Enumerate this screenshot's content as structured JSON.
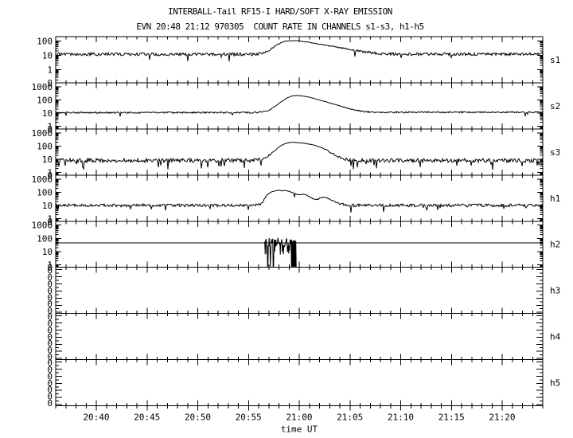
{
  "window": {
    "background": "#ffffff",
    "foreground": "#000000"
  },
  "chart_data": {
    "type": "line",
    "title": "INTERBALL-Tail RF15-I HARD/SOFT X-RAY EMISSION",
    "subtitle": "EVN 20:48 21:12 970305  COUNT RATE IN CHANNELS s1-s3, h1-h5",
    "xlabel": "time UT",
    "grid": false,
    "legend": false,
    "trace_color": "#000000",
    "axis_color": "#000000",
    "x_axis": {
      "units": "minutes after 20:00 UT",
      "start": 36,
      "end": 84,
      "minor_tick_every_min": 1,
      "major_ticks": [
        {
          "t": 40,
          "label": "20:40"
        },
        {
          "t": 45,
          "label": "20:45"
        },
        {
          "t": 50,
          "label": "20:50"
        },
        {
          "t": 55,
          "label": "20:55"
        },
        {
          "t": 60,
          "label": "21:00"
        },
        {
          "t": 65,
          "label": "21:05"
        },
        {
          "t": 70,
          "label": "21:10"
        },
        {
          "t": 75,
          "label": "21:15"
        },
        {
          "t": 80,
          "label": "21:20"
        }
      ]
    },
    "panels": [
      {
        "name": "s1",
        "side_label": "s1",
        "scale": "log",
        "ylog_top": 2.3,
        "ylog_bottom": -0.9,
        "yticks": [
          {
            "label": "100",
            "value": 100
          },
          {
            "label": "10",
            "value": 10
          },
          {
            "label": "1",
            "value": 1
          }
        ],
        "zero_label": "0",
        "series": {
          "seed": 11,
          "noise_dex": 0.1,
          "spike_p": 0.015,
          "spike_dex": 0.3,
          "keypoints": [
            [
              36,
              12
            ],
            [
              50,
              12
            ],
            [
              54,
              12
            ],
            [
              55.5,
              12
            ],
            [
              56,
              13
            ],
            [
              56.5,
              16
            ],
            [
              57,
              22
            ],
            [
              57.5,
              38
            ],
            [
              58,
              65
            ],
            [
              58.5,
              92
            ],
            [
              59,
              103
            ],
            [
              59.7,
              104
            ],
            [
              60.3,
              95
            ],
            [
              61,
              80
            ],
            [
              61.7,
              65
            ],
            [
              62.3,
              55
            ],
            [
              63,
              46
            ],
            [
              63.7,
              38
            ],
            [
              64.3,
              32
            ],
            [
              65,
              26
            ],
            [
              65.7,
              21
            ],
            [
              66.3,
              18
            ],
            [
              67,
              15.5
            ],
            [
              68,
              13.5
            ],
            [
              69,
              12.5
            ],
            [
              70,
              12
            ],
            [
              84,
              12.5
            ]
          ]
        }
      },
      {
        "name": "s2",
        "side_label": "s2",
        "scale": "log",
        "ylog_top": 3.3,
        "ylog_bottom": -0.2,
        "yticks": [
          {
            "label": "1000",
            "value": 1000
          },
          {
            "label": "100",
            "value": 100
          },
          {
            "label": "10",
            "value": 10
          },
          {
            "label": "1",
            "value": 1
          }
        ],
        "zero_label": "0",
        "series": {
          "seed": 22,
          "noise_dex": 0.055,
          "spike_p": 0.008,
          "spike_dex": 0.2,
          "keypoints": [
            [
              36,
              11
            ],
            [
              54,
              11
            ],
            [
              55.5,
              11
            ],
            [
              56.3,
              12
            ],
            [
              57,
              16
            ],
            [
              57.6,
              32
            ],
            [
              58.2,
              70
            ],
            [
              58.8,
              140
            ],
            [
              59.3,
              200
            ],
            [
              59.8,
              220
            ],
            [
              60.3,
              200
            ],
            [
              61,
              160
            ],
            [
              61.7,
              115
            ],
            [
              62.3,
              85
            ],
            [
              63,
              60
            ],
            [
              63.7,
              42
            ],
            [
              64.3,
              30
            ],
            [
              65,
              21
            ],
            [
              65.7,
              16
            ],
            [
              66.3,
              13.5
            ],
            [
              67,
              12
            ],
            [
              68,
              11.5
            ],
            [
              84,
              11.5
            ]
          ]
        }
      },
      {
        "name": "s3",
        "side_label": "s3",
        "scale": "log",
        "ylog_top": 3.3,
        "ylog_bottom": -0.2,
        "yticks": [
          {
            "label": "1000",
            "value": 1000
          },
          {
            "label": "100",
            "value": 100
          },
          {
            "label": "10",
            "value": 10
          },
          {
            "label": "1",
            "value": 1
          }
        ],
        "zero_label": "0",
        "series": {
          "seed": 33,
          "noise_dex": 0.15,
          "spike_p": 0.05,
          "spike_dex": 0.45,
          "keypoints": [
            [
              36,
              8
            ],
            [
              55,
              8
            ],
            [
              56,
              9
            ],
            [
              56.8,
              14
            ],
            [
              57.5,
              40
            ],
            [
              58.2,
              110
            ],
            [
              58.8,
              170
            ],
            [
              59.3,
              195
            ],
            [
              59.8,
              185
            ],
            [
              60.4,
              165
            ],
            [
              61,
              140
            ],
            [
              61.6,
              110
            ],
            [
              62.2,
              75
            ],
            [
              62.8,
              45
            ],
            [
              63.4,
              24
            ],
            [
              64,
              14
            ],
            [
              64.6,
              10
            ],
            [
              65.3,
              8.5
            ],
            [
              66,
              8
            ],
            [
              84,
              8
            ]
          ]
        }
      },
      {
        "name": "h1",
        "side_label": "h1",
        "scale": "log",
        "ylog_top": 3.3,
        "ylog_bottom": -0.2,
        "yticks": [
          {
            "label": "1000",
            "value": 1000
          },
          {
            "label": "100",
            "value": 100
          },
          {
            "label": "10",
            "value": 10
          },
          {
            "label": "1",
            "value": 1
          }
        ],
        "zero_label": "0",
        "series": {
          "seed": 44,
          "noise_dex": 0.11,
          "spike_p": 0.02,
          "spike_dex": 0.3,
          "down_spikes": [
            [
              65.1,
              0.55
            ],
            [
              68.3,
              0.5
            ]
          ],
          "keypoints": [
            [
              36,
              10
            ],
            [
              55,
              10
            ],
            [
              56.2,
              11
            ],
            [
              56.5,
              25
            ],
            [
              56.8,
              60
            ],
            [
              57.2,
              100
            ],
            [
              57.6,
              125
            ],
            [
              58,
              140
            ],
            [
              58.3,
              125
            ],
            [
              58.6,
              140
            ],
            [
              59,
              115
            ],
            [
              59.4,
              88
            ],
            [
              59.8,
              68
            ],
            [
              60.1,
              62
            ],
            [
              60.4,
              75
            ],
            [
              60.7,
              62
            ],
            [
              61,
              45
            ],
            [
              61.4,
              32
            ],
            [
              61.8,
              28
            ],
            [
              62.1,
              38
            ],
            [
              62.4,
              44
            ],
            [
              62.8,
              36
            ],
            [
              63.2,
              25
            ],
            [
              63.6,
              17
            ],
            [
              64,
              13
            ],
            [
              64.5,
              11
            ],
            [
              65,
              10
            ],
            [
              84,
              10
            ]
          ]
        }
      },
      {
        "name": "h2",
        "side_label": "h2",
        "scale": "log",
        "ylog_top": 3.3,
        "ylog_bottom": -0.2,
        "yticks": [
          {
            "label": "1000",
            "value": 1000
          },
          {
            "label": "100",
            "value": 100
          },
          {
            "label": "10",
            "value": 10
          },
          {
            "label": "1",
            "value": 1
          }
        ],
        "zero_label": "0",
        "hline_value": 45,
        "burst": {
          "seed": 55,
          "t_start": 56.6,
          "t_end": 59.7,
          "solid_drop_start": 59.2,
          "solid_drop_end": 59.7,
          "drop_times": [
            56.9,
            57.15,
            57.45
          ],
          "top_dex": 0.4,
          "bottom_dex": 0.55
        }
      },
      {
        "name": "h3",
        "side_label": "h3",
        "scale": "empty",
        "zero_labels": [
          "0",
          "0",
          "0",
          "0",
          "0",
          "0",
          "0"
        ]
      },
      {
        "name": "h4",
        "side_label": "h4",
        "scale": "empty",
        "zero_labels": [
          "0",
          "0",
          "0",
          "0",
          "0",
          "0",
          "0"
        ]
      },
      {
        "name": "h5",
        "side_label": "h5",
        "scale": "empty",
        "zero_labels": [
          "0",
          "0",
          "0",
          "0",
          "0",
          "0",
          "0"
        ]
      }
    ]
  }
}
